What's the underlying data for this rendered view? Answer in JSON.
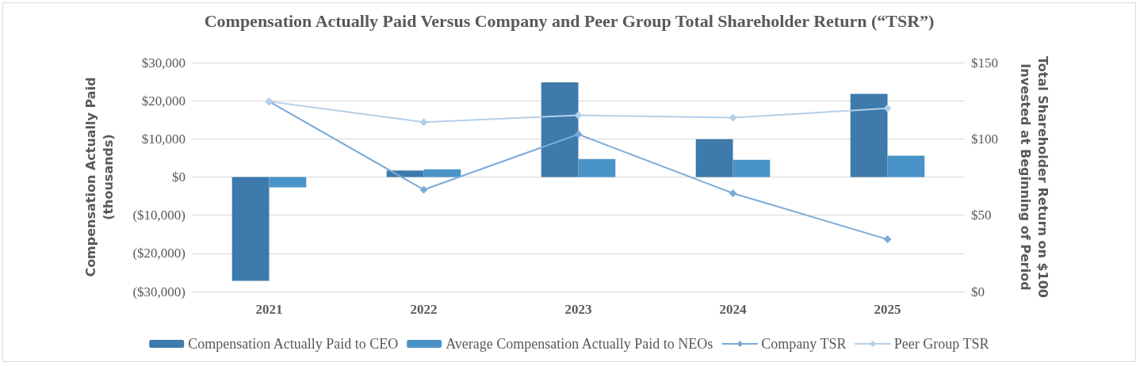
{
  "chart_data": {
    "type": "bar",
    "title": "Compensation Actually Paid Versus Company and Peer Group Total Shareholder Return (“TSR”)",
    "ylabel": "Compensation Actually Paid\n(thousands)",
    "y2label": "Total Shareholder Return on $100\nInvested at Beginning of Period",
    "categories": [
      "2021",
      "2022",
      "2023",
      "2024",
      "2025"
    ],
    "series": [
      {
        "name": "Compensation Actually Paid to CEO",
        "color": "#3e7aab",
        "values": [
          -27200,
          1700,
          24800,
          9900,
          21800
        ]
      },
      {
        "name": "Average Compensation Actually Paid to NEOs",
        "color": "#4a93c8",
        "values": [
          -2700,
          2000,
          4700,
          4500,
          5600
        ]
      },
      {
        "name": "Company TSR",
        "type": "line",
        "axis": "y2",
        "color": "#7aaad8",
        "values": [
          124.5,
          66.7,
          103,
          64.4,
          34.2
        ]
      },
      {
        "name": "Peer Group TSR",
        "type": "line",
        "axis": "y2",
        "color": "#b4cfe9",
        "values": [
          124.5,
          111,
          115.5,
          113.9,
          120
        ]
      }
    ],
    "ylim": [
      -30000,
      30000
    ],
    "yticks": [
      {
        "value": -30000,
        "label": "($30,000)"
      },
      {
        "value": -20000,
        "label": "($20,000)"
      },
      {
        "value": -10000,
        "label": "($10,000)"
      },
      {
        "value": 0,
        "label": "$0"
      },
      {
        "value": 10000,
        "label": "$10,000"
      },
      {
        "value": 20000,
        "label": "$20,000"
      },
      {
        "value": 30000,
        "label": "$30,000"
      }
    ],
    "y2lim": [
      0,
      150
    ],
    "y2ticks": [
      {
        "value": 0,
        "label": "$0"
      },
      {
        "value": 50,
        "label": "$50"
      },
      {
        "value": 100,
        "label": "$100"
      },
      {
        "value": 150,
        "label": "$150"
      }
    ],
    "grid": "y",
    "legend": "bottom",
    "marker": "diamond",
    "line_style": "solid"
  }
}
